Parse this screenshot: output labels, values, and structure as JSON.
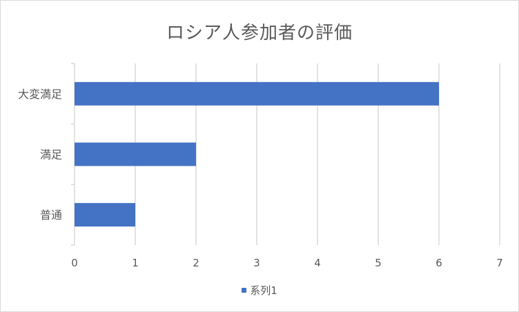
{
  "chart_data": {
    "type": "bar",
    "orientation": "horizontal",
    "title": "ロシア人参加者の評価",
    "categories": [
      "大変満足",
      "満足",
      "普通"
    ],
    "series": [
      {
        "name": "系列1",
        "values": [
          6,
          2,
          1
        ]
      }
    ],
    "xlim": [
      0,
      7
    ],
    "xticks": [
      "0",
      "1",
      "2",
      "3",
      "4",
      "5",
      "6",
      "7"
    ],
    "grid": true,
    "legend_position": "bottom",
    "bar_color": "#4472c4",
    "grid_color": "#d9d9d9",
    "text_color": "#595959"
  }
}
